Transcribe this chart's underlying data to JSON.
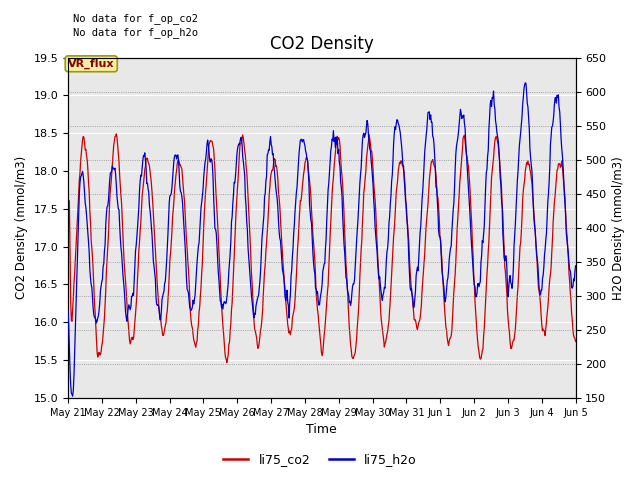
{
  "title": "CO2 Density",
  "xlabel": "Time",
  "ylabel_left": "CO2 Density (mmol/m3)",
  "ylabel_right": "H2O Density (mmol/m3)",
  "ylim_left": [
    15.0,
    19.5
  ],
  "ylim_right": [
    150,
    650
  ],
  "yticks_left": [
    15.0,
    15.5,
    16.0,
    16.5,
    17.0,
    17.5,
    18.0,
    18.5,
    19.0,
    19.5
  ],
  "yticks_right": [
    150,
    200,
    250,
    300,
    350,
    400,
    450,
    500,
    550,
    600,
    650
  ],
  "annotation_text": "No data for f_op_co2\nNo data for f_op_h2o",
  "box_label": "VR_flux",
  "legend_labels": [
    "li75_co2",
    "li75_h2o"
  ],
  "line_color_co2": "#cc0000",
  "line_color_h2o": "#0000cc",
  "bg_color": "#e8e8e8",
  "date_labels": [
    "May 21",
    "May 22",
    "May 23",
    "May 24",
    "May 25",
    "May 26",
    "May 27",
    "May 28",
    "May 29",
    "May 30",
    "May 31",
    "Jun 1",
    "Jun 2",
    "Jun 3",
    "Jun 4",
    "Jun 5"
  ]
}
